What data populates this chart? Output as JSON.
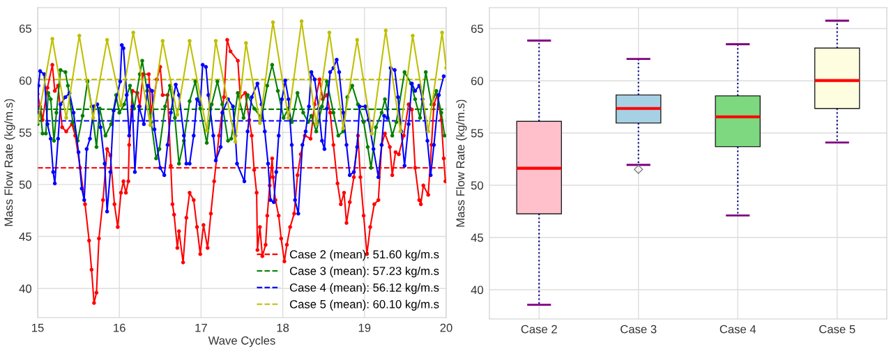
{
  "chart_data": [
    {
      "type": "line",
      "xlabel": "Wave Cycles",
      "ylabel": "Mass Flow Rate (kg/m.s)",
      "xlim": [
        15,
        20
      ],
      "ylim": [
        37.2,
        67
      ],
      "xticks": [
        15,
        16,
        17,
        18,
        19,
        20
      ],
      "yticks": [
        40,
        45,
        50,
        55,
        60,
        65
      ],
      "grid": true,
      "legend": "lower right",
      "marker": "circle",
      "line_style": "solid",
      "series": [
        {
          "color": "#ff0000",
          "x": [
            15.0,
            15.03,
            15.06,
            15.12,
            15.18,
            15.21,
            15.25,
            15.3,
            15.35,
            15.42,
            15.46,
            15.52,
            15.58,
            15.63,
            15.66,
            15.69,
            15.72,
            15.75,
            15.8,
            15.85,
            15.89,
            15.94,
            15.98,
            16.02,
            16.05,
            16.08,
            16.11,
            16.12,
            16.16,
            16.22,
            16.25,
            16.29,
            16.36,
            16.39,
            16.46,
            16.5,
            16.53,
            16.59,
            16.63,
            16.65,
            16.67,
            16.71,
            16.73,
            16.78,
            16.82,
            16.86,
            16.91,
            16.95,
            16.99,
            17.03,
            17.08,
            17.12,
            17.16,
            17.22,
            17.28,
            17.32,
            17.36,
            17.45,
            17.48,
            17.54,
            17.59,
            17.62,
            17.65,
            17.68,
            17.69,
            17.72,
            17.75,
            17.79,
            17.81,
            17.84,
            17.87,
            17.88,
            17.91,
            17.95,
            17.98,
            18.02,
            18.05,
            18.09,
            18.14,
            18.18,
            18.22,
            18.27,
            18.34,
            18.39,
            18.45,
            18.49,
            18.54,
            18.58,
            18.62,
            18.67,
            18.71,
            18.75,
            18.78,
            18.82,
            18.87,
            18.92,
            18.95,
            18.99,
            19.03,
            19.07,
            19.12,
            19.17,
            19.21,
            19.25,
            19.31,
            19.34,
            19.38,
            19.42,
            19.48,
            19.54,
            19.58,
            19.62,
            19.67,
            19.69,
            19.72,
            19.78,
            19.82,
            19.85,
            19.89,
            19.94,
            19.97,
            19.99
          ],
          "values": [
            58.7,
            57.5,
            56.2,
            59.3,
            61.5,
            59.0,
            59.5,
            55.5,
            55.1,
            55.8,
            54.7,
            51.6,
            48.1,
            44.6,
            41.8,
            38.6,
            39.6,
            44.8,
            48.5,
            53.4,
            52.8,
            48.1,
            45.9,
            49.2,
            50.3,
            49.2,
            50.3,
            53.8,
            59.0,
            58.8,
            57.5,
            60.6,
            60.6,
            56.9,
            60.1,
            61.3,
            58.6,
            58.6,
            51.8,
            48.1,
            47.1,
            43.9,
            45.5,
            42.5,
            46.8,
            49.2,
            48.5,
            45.9,
            43.3,
            46.1,
            43.9,
            47.2,
            50.3,
            54.7,
            58.4,
            63.9,
            62.8,
            61.9,
            58.4,
            58.8,
            56.2,
            54.7,
            51.4,
            49.2,
            43.7,
            45.9,
            43.1,
            44.2,
            47.0,
            49.9,
            52.5,
            50.7,
            48.5,
            47.0,
            44.8,
            42.6,
            44.2,
            45.9,
            47.2,
            50.9,
            52.9,
            54.7,
            54.4,
            57.7,
            60.1,
            58.2,
            58.6,
            56.9,
            53.8,
            50.1,
            48.1,
            49.2,
            46.3,
            48.3,
            50.7,
            54.7,
            50.7,
            47.0,
            43.3,
            45.9,
            48.1,
            48.5,
            53.8,
            54.9,
            53.6,
            50.9,
            53.1,
            52.9,
            54.7,
            57.7,
            57.2,
            51.6,
            48.5,
            48.1,
            49.9,
            49.0,
            53.8,
            57.7,
            58.6,
            56.2,
            52.5,
            50.3
          ]
        },
        {
          "color": "#008000",
          "x": [
            15.0,
            15.03,
            15.06,
            15.1,
            15.13,
            15.16,
            15.2,
            15.23,
            15.28,
            15.34,
            15.37,
            15.43,
            15.49,
            15.55,
            15.61,
            15.66,
            15.72,
            15.76,
            15.83,
            15.9,
            15.96,
            16.0,
            16.06,
            16.13,
            16.18,
            16.25,
            16.28,
            16.34,
            16.39,
            16.45,
            16.49,
            16.56,
            16.62,
            16.68,
            16.73,
            16.79,
            16.86,
            16.93,
            16.99,
            17.07,
            17.13,
            17.2,
            17.26,
            17.33,
            17.37,
            17.45,
            17.52,
            17.57,
            17.65,
            17.74,
            17.81,
            17.87,
            17.94,
            18.01,
            18.07,
            18.11,
            18.18,
            18.25,
            18.31,
            18.35,
            18.41,
            18.48,
            18.54,
            18.62,
            18.68,
            18.74,
            18.79,
            18.85,
            18.92,
            18.99,
            19.04,
            19.08,
            19.14,
            19.21,
            19.25,
            19.34,
            19.39,
            19.49,
            19.57,
            19.62,
            19.68,
            19.75,
            19.82,
            19.88,
            19.94,
            19.98
          ],
          "values": [
            55.8,
            57.3,
            54.9,
            54.9,
            58.8,
            58.2,
            54.2,
            56.9,
            61.0,
            60.8,
            59.5,
            56.0,
            54.2,
            56.6,
            59.9,
            57.5,
            53.6,
            57.3,
            54.7,
            55.8,
            58.6,
            56.9,
            57.7,
            59.5,
            57.3,
            60.6,
            61.9,
            59.0,
            56.0,
            52.5,
            53.4,
            57.5,
            59.5,
            56.4,
            52.0,
            54.2,
            58.0,
            59.9,
            57.3,
            54.0,
            57.7,
            59.9,
            57.7,
            54.2,
            54.4,
            58.8,
            56.4,
            58.6,
            57.3,
            56.4,
            59.5,
            61.5,
            59.0,
            56.4,
            57.3,
            56.0,
            58.8,
            56.9,
            56.0,
            56.6,
            55.1,
            57.5,
            59.9,
            56.9,
            54.7,
            55.1,
            58.4,
            59.5,
            57.7,
            56.0,
            53.6,
            51.6,
            55.5,
            56.9,
            58.2,
            54.7,
            56.0,
            60.8,
            59.7,
            58.2,
            56.4,
            60.8,
            57.7,
            59.0,
            56.9,
            54.7
          ]
        },
        {
          "color": "#0000ff",
          "x": [
            15.0,
            15.01,
            15.03,
            15.08,
            15.12,
            15.16,
            15.19,
            15.21,
            15.25,
            15.28,
            15.34,
            15.39,
            15.44,
            15.5,
            15.54,
            15.57,
            15.6,
            15.64,
            15.69,
            15.73,
            15.77,
            15.82,
            15.85,
            15.89,
            15.93,
            16.01,
            16.03,
            16.05,
            16.09,
            16.12,
            16.16,
            16.19,
            16.24,
            16.3,
            16.35,
            16.4,
            16.43,
            16.5,
            16.55,
            16.59,
            16.63,
            16.69,
            16.73,
            16.79,
            16.82,
            16.86,
            16.91,
            16.95,
            16.99,
            17.02,
            17.06,
            17.09,
            17.15,
            17.18,
            17.24,
            17.26,
            17.33,
            17.39,
            17.42,
            17.44,
            17.53,
            17.57,
            17.62,
            17.69,
            17.74,
            17.78,
            17.82,
            17.85,
            17.89,
            17.92,
            17.95,
            17.99,
            18.03,
            18.07,
            18.11,
            18.15,
            18.19,
            18.24,
            18.28,
            18.32,
            18.35,
            18.39,
            18.44,
            18.48,
            18.51,
            18.54,
            18.58,
            18.62,
            18.66,
            18.69,
            18.74,
            18.78,
            18.82,
            18.87,
            18.91,
            18.94,
            19.01,
            19.05,
            19.11,
            19.17,
            19.21,
            19.24,
            19.28,
            19.32,
            19.37,
            19.41,
            19.45,
            19.49,
            19.54,
            19.58,
            19.62,
            19.67,
            19.71,
            19.77,
            19.81,
            19.85,
            19.91,
            19.97
          ],
          "values": [
            56.9,
            59.5,
            60.9,
            60.6,
            55.8,
            54.4,
            51.2,
            50.1,
            54.4,
            57.7,
            58.4,
            58.8,
            56.9,
            53.1,
            49.6,
            48.5,
            53.4,
            54.4,
            57.5,
            57.7,
            55.5,
            52.0,
            47.4,
            51.2,
            57.1,
            59.9,
            63.4,
            63.1,
            58.6,
            54.7,
            57.5,
            51.2,
            57.5,
            55.8,
            59.5,
            59.0,
            55.3,
            51.6,
            50.9,
            53.8,
            56.9,
            59.6,
            58.6,
            54.7,
            52.0,
            52.0,
            54.7,
            58.2,
            57.7,
            61.5,
            61.3,
            58.6,
            54.7,
            52.3,
            53.6,
            56.9,
            58.2,
            57.5,
            54.7,
            52.0,
            50.3,
            55.1,
            58.4,
            59.7,
            57.7,
            55.1,
            52.0,
            48.5,
            48.3,
            51.2,
            54.7,
            58.2,
            60.0,
            58.2,
            53.8,
            48.5,
            47.2,
            53.8,
            55.1,
            57.5,
            60.8,
            60.1,
            57.3,
            54.2,
            53.4,
            57.3,
            60.8,
            61.2,
            62.0,
            60.8,
            56.9,
            53.8,
            50.9,
            51.2,
            53.6,
            57.5,
            57.5,
            56.2,
            53.4,
            50.7,
            53.8,
            56.6,
            56.4,
            61.2,
            61.0,
            58.4,
            55.1,
            51.8,
            55.8,
            59.7,
            59.0,
            59.5,
            58.2,
            54.2,
            50.9,
            53.8,
            58.6,
            60.4
          ]
        },
        {
          "color": "#bfbf00",
          "x": [
            15.0,
            15.18,
            15.35,
            15.51,
            15.68,
            15.85,
            16.02,
            16.17,
            16.38,
            16.53,
            16.71,
            16.86,
            17.07,
            17.18,
            17.42,
            17.55,
            17.72,
            17.88,
            18.07,
            18.23,
            18.41,
            18.57,
            18.74,
            18.91,
            19.09,
            19.26,
            19.44,
            19.59,
            19.78,
            19.95,
            20.0
          ],
          "values": [
            56.0,
            64.0,
            56.4,
            64.3,
            56.4,
            63.9,
            57.6,
            64.6,
            55.7,
            63.8,
            56.7,
            63.8,
            55.2,
            63.8,
            54.1,
            63.6,
            55.9,
            65.6,
            56.4,
            65.7,
            55.8,
            64.6,
            55.4,
            63.9,
            54.9,
            64.8,
            55.1,
            64.3,
            55.1,
            64.6,
            61.2
          ]
        }
      ],
      "ref_lines": [
        {
          "axis": "y",
          "value": 51.6,
          "label": "Case 2 (mean): 51.60 kg/m.s",
          "color": "#ff0000",
          "line_style": "dashed"
        },
        {
          "axis": "y",
          "value": 57.23,
          "label": "Case 3 (mean): 57.23 kg/m.s",
          "color": "#008000",
          "line_style": "dashed"
        },
        {
          "axis": "y",
          "value": 56.12,
          "label": "Case 4 (mean): 56.12 kg/m.s",
          "color": "#0000ff",
          "line_style": "dashed"
        },
        {
          "axis": "y",
          "value": 60.1,
          "label": "Case 5 (mean): 60.10 kg/m.s",
          "color": "#bfbf00",
          "line_style": "dashed"
        }
      ]
    },
    {
      "type": "box",
      "ylabel": "Mass Flow Rate (kg/m.s)",
      "categories": [
        "Case 2",
        "Case 3",
        "Case 4",
        "Case 5"
      ],
      "ylim": [
        37.2,
        67
      ],
      "yticks": [
        40,
        45,
        50,
        55,
        60,
        65
      ],
      "grid": true,
      "colors": [
        "#ffc0cb",
        "#a6d0e4",
        "#7dd87f",
        "#fffde0"
      ],
      "boxes": [
        {
          "low": 38.56,
          "q1": 47.27,
          "median": 51.63,
          "q3": 56.12,
          "high": 63.85
        },
        {
          "low": 51.95,
          "q1": 55.96,
          "median": 57.35,
          "q3": 58.64,
          "high": 62.09,
          "outliers": [
            51.52
          ]
        },
        {
          "low": 47.11,
          "q1": 53.69,
          "median": 56.55,
          "q3": 58.56,
          "high": 63.5
        },
        {
          "low": 54.09,
          "q1": 57.35,
          "median": 60.03,
          "q3": 63.13,
          "high": 65.75
        }
      ]
    }
  ]
}
